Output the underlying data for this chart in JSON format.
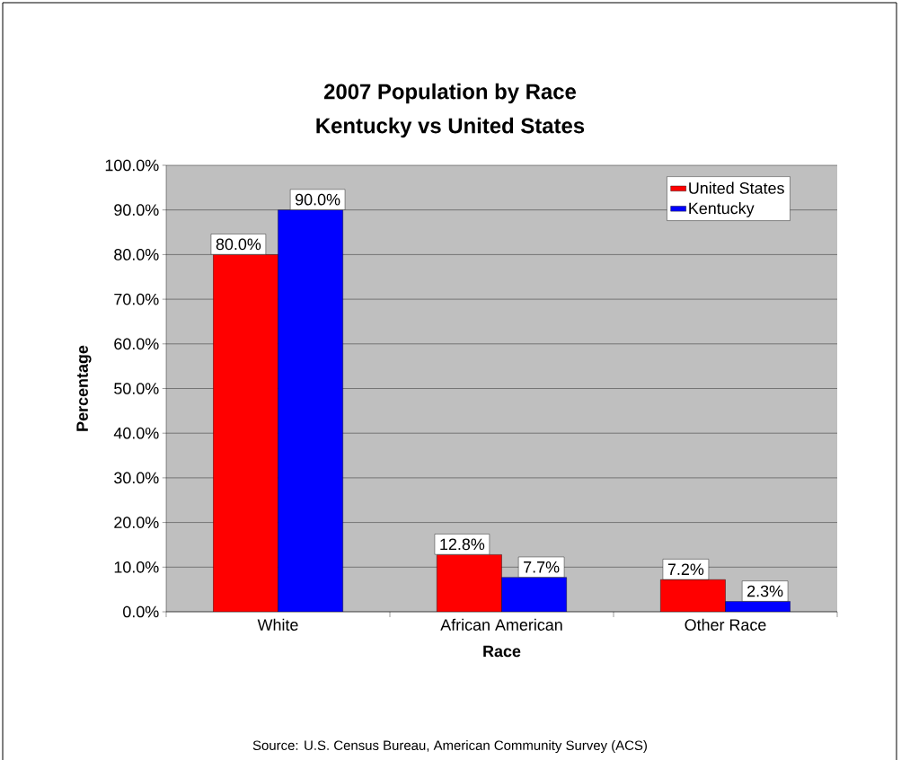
{
  "chart_data": {
    "type": "bar",
    "title": "2007 Population by Race",
    "subtitle": "Kentucky vs United States",
    "xlabel": "Race",
    "ylabel": "Percentage",
    "categories": [
      "White",
      "African American",
      "Other Race"
    ],
    "series": [
      {
        "name": "United States",
        "color": "#ff0000",
        "values": [
          80.0,
          12.8,
          7.2
        ],
        "value_labels": [
          "80.0%",
          "12.8%",
          "7.2%"
        ]
      },
      {
        "name": "Kentucky",
        "color": "#0000ff",
        "values": [
          90.0,
          7.7,
          2.3
        ],
        "value_labels": [
          "90.0%",
          "7.7%",
          "2.3%"
        ]
      }
    ],
    "ylim": [
      0,
      100
    ],
    "yticks": [
      {
        "value": 0,
        "label": "0.0%"
      },
      {
        "value": 10,
        "label": "10.0%"
      },
      {
        "value": 20,
        "label": "20.0%"
      },
      {
        "value": 30,
        "label": "30.0%"
      },
      {
        "value": 40,
        "label": "40.0%"
      },
      {
        "value": 50,
        "label": "50.0%"
      },
      {
        "value": 60,
        "label": "60.0%"
      },
      {
        "value": 70,
        "label": "70.0%"
      },
      {
        "value": 80,
        "label": "80.0%"
      },
      {
        "value": 90,
        "label": "90.0%"
      },
      {
        "value": 100,
        "label": "100.0%"
      }
    ],
    "grid": "y",
    "legend": "top right",
    "annotations": [
      "Source:  U.S. Census Bureau, American Community Survey (ACS)"
    ]
  }
}
